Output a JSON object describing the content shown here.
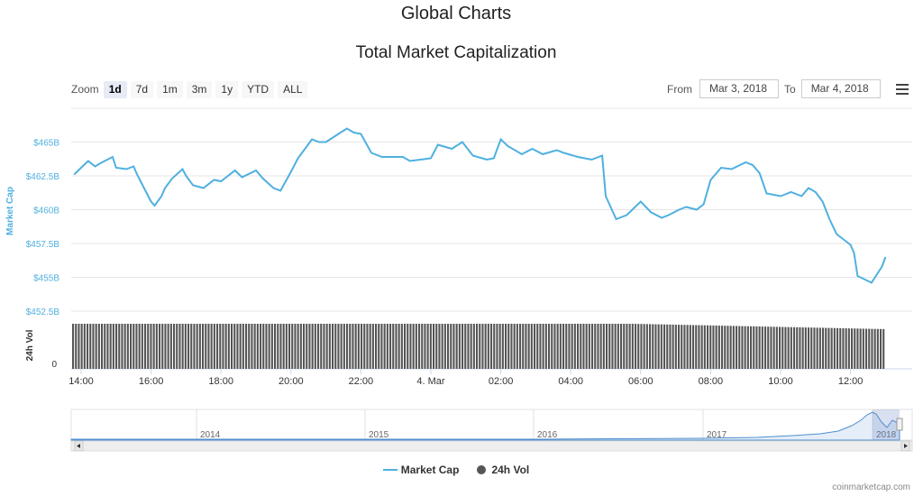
{
  "header": {
    "page_title": "Global Charts",
    "chart_title": "Total Market Capitalization"
  },
  "zoom": {
    "label": "Zoom",
    "options": [
      "1d",
      "7d",
      "1m",
      "3m",
      "1y",
      "YTD",
      "ALL"
    ],
    "active": "1d"
  },
  "range": {
    "from_label": "From",
    "from_value": "Mar 3, 2018",
    "to_label": "To",
    "to_value": "Mar 4, 2018"
  },
  "legend": {
    "market_cap": "Market Cap",
    "volume": "24h Vol"
  },
  "credits": "coinmarketcap.com",
  "colors": {
    "market_cap": "#4fb0e0",
    "volume": "#555555",
    "navigator": "#4f8fcf"
  },
  "chart_data": {
    "type": "line",
    "title": "Total Market Capitalization",
    "x_tick_labels": [
      "14:00",
      "16:00",
      "18:00",
      "20:00",
      "22:00",
      "4. Mar",
      "02:00",
      "04:00",
      "06:00",
      "08:00",
      "10:00",
      "12:00"
    ],
    "x_ticks_hours": [
      0,
      2,
      4,
      6,
      8,
      10,
      12,
      14,
      16,
      18,
      20,
      22
    ],
    "y_axis": {
      "label": "Market Cap",
      "tick_labels": [
        "$452.5B",
        "$455B",
        "$457.5B",
        "$460B",
        "$462.5B",
        "$465B"
      ],
      "ticks": [
        452.5,
        455,
        457.5,
        460,
        462.5,
        465
      ],
      "range": [
        452.5,
        467.5
      ],
      "unit": "B USD"
    },
    "volume_axis": {
      "label": "24h Vol",
      "tick_labels": [
        "0"
      ]
    },
    "grid": true,
    "series": [
      {
        "name": "Market Cap",
        "x_hours": [
          -0.2,
          0.2,
          0.4,
          0.6,
          0.9,
          1.0,
          1.3,
          1.5,
          1.6,
          1.8,
          2.0,
          2.1,
          2.3,
          2.4,
          2.6,
          2.9,
          3.0,
          3.2,
          3.5,
          3.8,
          4.0,
          4.4,
          4.6,
          5.0,
          5.2,
          5.5,
          5.7,
          6.0,
          6.2,
          6.6,
          6.8,
          7.0,
          7.3,
          7.6,
          7.8,
          8.0,
          8.3,
          8.6,
          8.8,
          9.2,
          9.4,
          9.7,
          10.0,
          10.2,
          10.6,
          10.9,
          11.2,
          11.6,
          11.8,
          12.0,
          12.2,
          12.6,
          12.9,
          13.2,
          13.6,
          13.8,
          14.2,
          14.4,
          14.6,
          14.9,
          15.0,
          15.3,
          15.6,
          16.0,
          16.3,
          16.6,
          16.8,
          17.1,
          17.3,
          17.6,
          17.8,
          18.0,
          18.3,
          18.6,
          19.0,
          19.2,
          19.4,
          19.6,
          20.0,
          20.3,
          20.6,
          20.8,
          21.0,
          21.2,
          21.4,
          21.6,
          21.8,
          22.0,
          22.1,
          22.2,
          22.6,
          22.9,
          23.0
        ],
        "values": [
          462.6,
          463.6,
          463.2,
          463.5,
          463.9,
          463.1,
          463.0,
          463.2,
          462.6,
          461.6,
          460.6,
          460.3,
          461.0,
          461.6,
          462.3,
          463.0,
          462.5,
          461.8,
          461.6,
          462.2,
          462.1,
          462.9,
          462.4,
          462.9,
          462.3,
          461.6,
          461.4,
          462.8,
          463.8,
          465.2,
          465.0,
          465.0,
          465.5,
          466.0,
          465.7,
          465.6,
          464.2,
          463.9,
          463.9,
          463.9,
          463.6,
          463.7,
          463.8,
          464.8,
          464.5,
          465.0,
          464.0,
          463.7,
          463.8,
          465.2,
          464.7,
          464.1,
          464.5,
          464.1,
          464.4,
          464.2,
          463.9,
          463.8,
          463.7,
          464.0,
          461.0,
          459.3,
          459.6,
          460.6,
          459.8,
          459.4,
          459.6,
          460.0,
          460.2,
          460.0,
          460.4,
          462.2,
          463.1,
          463.0,
          463.5,
          463.3,
          462.7,
          461.2,
          461.0,
          461.3,
          461.0,
          461.6,
          461.3,
          460.6,
          459.3,
          458.2,
          457.8,
          457.4,
          456.8,
          455.1,
          454.6,
          455.8,
          456.5
        ]
      },
      {
        "name": "24h Vol",
        "type": "column",
        "values": "uniform ~0.95 of axis, tapering slightly toward the end"
      }
    ],
    "navigator": {
      "labels": [
        "2014",
        "2015",
        "2016",
        "2017",
        "2018"
      ]
    }
  }
}
